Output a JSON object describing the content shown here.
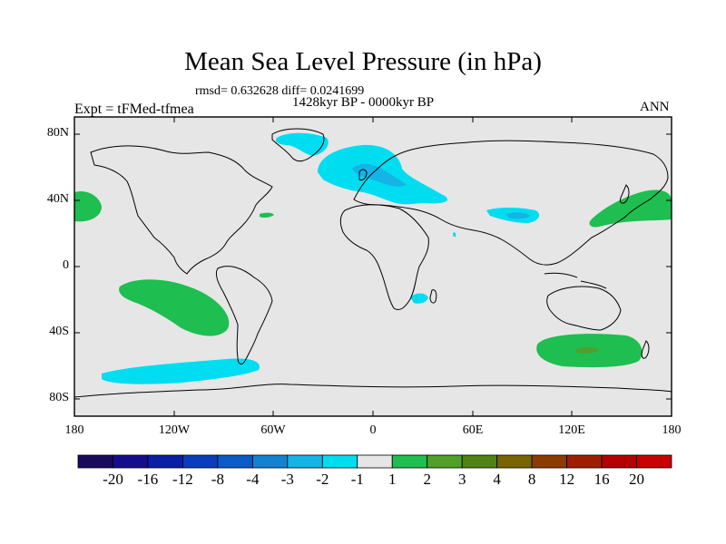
{
  "title": "Mean Sea Level Pressure (in hPa)",
  "stats_line": "rmsd= 0.632628 diff= 0.0241699",
  "period": "1428kyr BP - 0000kyr BP",
  "experiment": "Expt = tFMed-tfmea",
  "season": "ANN",
  "map": {
    "projection": "cylindrical-equidistant",
    "lon_range": [
      -180,
      180
    ],
    "lat_range": [
      -90,
      90
    ],
    "y_ticks": [
      "80N",
      "40N",
      "0",
      "40S",
      "80S"
    ],
    "x_ticks": [
      "180",
      "120W",
      "60W",
      "0",
      "60E",
      "120E",
      "180"
    ],
    "background_color": "#e6e6e6",
    "coastline_color": "#000000"
  },
  "colorbar": {
    "labels": [
      "-20",
      "-16",
      "-12",
      "-8",
      "-4",
      "-3",
      "-2",
      "-1",
      "1",
      "2",
      "3",
      "4",
      "8",
      "12",
      "16",
      "20"
    ],
    "colors": [
      "#1a0a5c",
      "#140e8c",
      "#0a1ea6",
      "#0a3cbe",
      "#0a5ac8",
      "#1482d2",
      "#14b4e6",
      "#00dcf0",
      "#e6e6e6",
      "#1ebe50",
      "#50a02a",
      "#508214",
      "#786400",
      "#8c3c00",
      "#a01e00",
      "#b40000",
      "#c80000"
    ]
  },
  "legend": {
    "negative_anomaly": "cyan (-2 to -1 hPa) and light blue (-3 to -2 hPa)",
    "positive_anomaly": "green (1 to 2 hPa) and olive (3 to 4 hPa)"
  }
}
